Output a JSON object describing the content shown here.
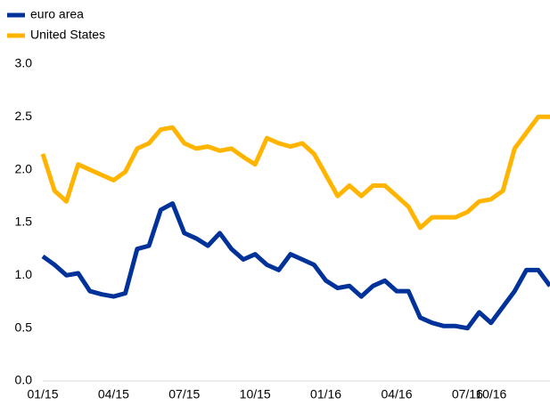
{
  "chart_data": {
    "type": "line",
    "categories": [
      "01/15",
      null,
      null,
      null,
      null,
      null,
      "04/15",
      null,
      null,
      null,
      null,
      null,
      "07/15",
      null,
      null,
      null,
      null,
      null,
      "10/15",
      null,
      null,
      null,
      null,
      null,
      "01/16",
      null,
      null,
      null,
      null,
      null,
      "04/16",
      null,
      null,
      null,
      null,
      null,
      "07/16",
      null,
      "10/16",
      null,
      null,
      null,
      null,
      null
    ],
    "series": [
      {
        "name": "euro area",
        "color": "#003299",
        "values": [
          1.18,
          1.1,
          1.0,
          1.02,
          0.85,
          0.82,
          0.8,
          0.83,
          1.25,
          1.28,
          1.62,
          1.68,
          1.4,
          1.35,
          1.28,
          1.4,
          1.25,
          1.15,
          1.2,
          1.1,
          1.05,
          1.2,
          1.15,
          1.1,
          0.95,
          0.88,
          0.9,
          0.8,
          0.9,
          0.95,
          0.85,
          0.85,
          0.6,
          0.55,
          0.52,
          0.52,
          0.5,
          0.65,
          0.55,
          0.7,
          0.85,
          1.05,
          1.05,
          0.9
        ]
      },
      {
        "name": "United States",
        "color": "#ffb400",
        "values": [
          2.15,
          1.8,
          1.7,
          2.05,
          2.0,
          1.95,
          1.9,
          1.98,
          2.2,
          2.25,
          2.38,
          2.4,
          2.25,
          2.2,
          2.22,
          2.18,
          2.2,
          2.12,
          2.05,
          2.3,
          2.25,
          2.22,
          2.25,
          2.15,
          1.95,
          1.75,
          1.85,
          1.75,
          1.85,
          1.85,
          1.75,
          1.65,
          1.45,
          1.55,
          1.55,
          1.55,
          1.6,
          1.7,
          1.72,
          1.8,
          2.2,
          2.35,
          2.5,
          2.5
        ]
      }
    ],
    "ylim": [
      0,
      3
    ],
    "yticks": [
      {
        "value": 0,
        "label": "0.0"
      },
      {
        "value": 0.5,
        "label": "0.5"
      },
      {
        "value": 1,
        "label": "1.0"
      },
      {
        "value": 1.5,
        "label": "1.5"
      },
      {
        "value": 2,
        "label": "2.0"
      },
      {
        "value": 2.5,
        "label": "2.5"
      },
      {
        "value": 3,
        "label": "3.0"
      }
    ],
    "legend": "top-left"
  }
}
